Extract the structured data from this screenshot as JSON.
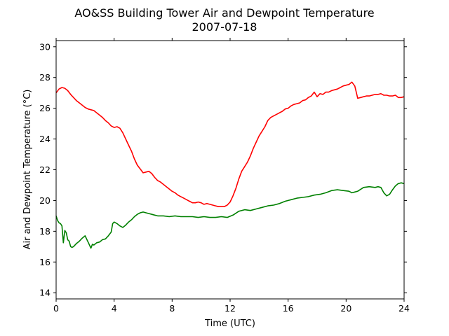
{
  "chart_data": {
    "type": "line",
    "title": "AO&SS Building Tower Air and Dewpoint Temperature",
    "subtitle": "2007-07-18",
    "xlabel": "Time (UTC)",
    "ylabel": "Air and Dewpoint Temperature (°C)",
    "xlim": [
      0,
      24
    ],
    "ylim": [
      13.6,
      30.4
    ],
    "x_ticks": [
      0,
      4,
      8,
      12,
      16,
      20,
      24
    ],
    "y_ticks": [
      14,
      16,
      18,
      20,
      22,
      24,
      26,
      28,
      30
    ],
    "x_tick_labels": [
      "0",
      "4",
      "8",
      "12",
      "16",
      "20",
      "24"
    ],
    "y_tick_labels": [
      "14",
      "16",
      "18",
      "20",
      "22",
      "24",
      "26",
      "28",
      "30"
    ],
    "grid": false,
    "legend": "none",
    "series": [
      {
        "color": "#ff0000",
        "x": [
          0,
          0.2,
          0.4,
          0.6,
          0.8,
          1.0,
          1.2,
          1.4,
          1.6,
          1.8,
          2.0,
          2.2,
          2.4,
          2.6,
          2.8,
          3.0,
          3.2,
          3.4,
          3.6,
          3.8,
          4.0,
          4.2,
          4.4,
          4.6,
          4.8,
          5.0,
          5.2,
          5.4,
          5.6,
          5.8,
          6.0,
          6.2,
          6.4,
          6.6,
          6.8,
          7.0,
          7.2,
          7.4,
          7.6,
          7.8,
          8.0,
          8.2,
          8.4,
          8.6,
          8.8,
          9.0,
          9.2,
          9.4,
          9.6,
          9.8,
          10.0,
          10.2,
          10.4,
          10.6,
          10.8,
          11.0,
          11.2,
          11.4,
          11.6,
          11.8,
          12.0,
          12.2,
          12.4,
          12.6,
          12.8,
          13.0,
          13.2,
          13.4,
          13.6,
          13.8,
          14.0,
          14.2,
          14.4,
          14.6,
          14.8,
          15.0,
          15.2,
          15.4,
          15.6,
          15.8,
          16.0,
          16.2,
          16.4,
          16.6,
          16.8,
          17.0,
          17.2,
          17.4,
          17.6,
          17.8,
          18.0,
          18.2,
          18.4,
          18.6,
          18.8,
          19.0,
          19.2,
          19.4,
          19.6,
          19.8,
          20.0,
          20.2,
          20.4,
          20.6,
          20.8,
          21.0,
          21.2,
          21.4,
          21.6,
          21.8,
          22.0,
          22.2,
          22.4,
          22.6,
          22.8,
          23.0,
          23.2,
          23.4,
          23.6,
          23.8,
          24.0
        ],
        "y": [
          27.0,
          27.25,
          27.35,
          27.3,
          27.15,
          26.9,
          26.7,
          26.5,
          26.35,
          26.2,
          26.05,
          25.95,
          25.9,
          25.85,
          25.7,
          25.55,
          25.4,
          25.2,
          25.05,
          24.85,
          24.75,
          24.8,
          24.7,
          24.4,
          24.0,
          23.6,
          23.2,
          22.7,
          22.3,
          22.05,
          21.8,
          21.85,
          21.9,
          21.75,
          21.5,
          21.3,
          21.2,
          21.05,
          20.9,
          20.75,
          20.6,
          20.5,
          20.35,
          20.25,
          20.15,
          20.05,
          19.95,
          19.85,
          19.85,
          19.9,
          19.85,
          19.75,
          19.8,
          19.75,
          19.7,
          19.65,
          19.6,
          19.6,
          19.6,
          19.7,
          19.9,
          20.3,
          20.8,
          21.4,
          21.9,
          22.2,
          22.5,
          22.9,
          23.4,
          23.8,
          24.2,
          24.5,
          24.8,
          25.2,
          25.4,
          25.5,
          25.6,
          25.7,
          25.8,
          25.95,
          26.0,
          26.15,
          26.25,
          26.3,
          26.35,
          26.5,
          26.55,
          26.7,
          26.8,
          27.05,
          26.75,
          26.95,
          26.9,
          27.05,
          27.05,
          27.15,
          27.2,
          27.25,
          27.35,
          27.45,
          27.5,
          27.55,
          27.7,
          27.45,
          26.65,
          26.7,
          26.75,
          26.8,
          26.8,
          26.85,
          26.9,
          26.9,
          26.95,
          26.85,
          26.85,
          26.8,
          26.8,
          26.85,
          26.7,
          26.7,
          26.75
        ]
      },
      {
        "color": "#008000",
        "x": [
          0,
          0.1,
          0.2,
          0.3,
          0.4,
          0.5,
          0.6,
          0.7,
          0.8,
          0.9,
          1.0,
          1.1,
          1.2,
          1.3,
          1.4,
          1.6,
          1.8,
          2.0,
          2.2,
          2.4,
          2.5,
          2.6,
          2.8,
          3.0,
          3.2,
          3.4,
          3.6,
          3.8,
          3.9,
          4.0,
          4.2,
          4.4,
          4.6,
          4.8,
          5.0,
          5.2,
          5.4,
          5.6,
          5.8,
          6.0,
          6.2,
          6.4,
          6.6,
          6.8,
          7.0,
          7.4,
          7.8,
          8.2,
          8.6,
          9.0,
          9.4,
          9.8,
          10.2,
          10.6,
          11.0,
          11.4,
          11.8,
          12.2,
          12.6,
          13.0,
          13.4,
          13.8,
          14.2,
          14.6,
          15.0,
          15.4,
          15.8,
          16.2,
          16.6,
          17.0,
          17.4,
          17.8,
          18.2,
          18.6,
          19.0,
          19.4,
          19.8,
          20.2,
          20.4,
          20.6,
          20.8,
          21.2,
          21.6,
          22.0,
          22.2,
          22.4,
          22.6,
          22.8,
          23.0,
          23.2,
          23.4,
          23.6,
          23.8,
          24.0
        ],
        "y": [
          19.0,
          18.7,
          18.55,
          18.5,
          18.35,
          17.25,
          18.05,
          17.9,
          17.45,
          17.35,
          17.0,
          16.95,
          17.0,
          17.1,
          17.2,
          17.35,
          17.55,
          17.7,
          17.3,
          16.9,
          17.15,
          17.1,
          17.25,
          17.3,
          17.45,
          17.5,
          17.7,
          17.95,
          18.5,
          18.6,
          18.5,
          18.35,
          18.25,
          18.4,
          18.6,
          18.75,
          18.95,
          19.1,
          19.2,
          19.25,
          19.2,
          19.15,
          19.1,
          19.05,
          19.0,
          19.0,
          18.95,
          19.0,
          18.95,
          18.95,
          18.95,
          18.9,
          18.95,
          18.9,
          18.9,
          18.95,
          18.9,
          19.05,
          19.3,
          19.4,
          19.35,
          19.45,
          19.55,
          19.65,
          19.7,
          19.8,
          19.95,
          20.05,
          20.15,
          20.2,
          20.25,
          20.35,
          20.4,
          20.5,
          20.65,
          20.7,
          20.65,
          20.6,
          20.5,
          20.55,
          20.6,
          20.85,
          20.9,
          20.85,
          20.9,
          20.85,
          20.5,
          20.3,
          20.4,
          20.7,
          20.95,
          21.1,
          21.15,
          21.1
        ]
      }
    ]
  }
}
